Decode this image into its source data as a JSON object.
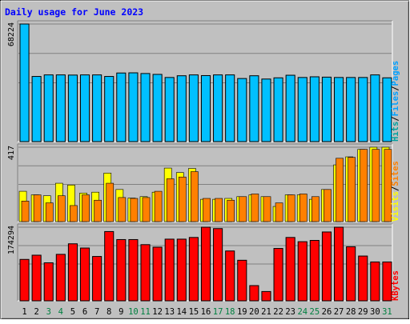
{
  "title": "Daily usage for June 2023",
  "colors": {
    "background": "#c0c0c0",
    "title_text": "#0000ff",
    "hits": "#00a0a0",
    "files": "#00a0ff",
    "hits_files_bar": "#00c0ff",
    "pages": "#00a0ff",
    "visits": "#ffff00",
    "sites": "#ff8000",
    "kbytes": "#ff0000",
    "weekday_label": "#000000",
    "weekend_label": "#008040"
  },
  "chart_data": [
    {
      "type": "bar",
      "panel": "hits-files",
      "ymax_label": "68224",
      "ylim": [
        0,
        68224
      ],
      "legend": [
        "Pages",
        "Files",
        "Hits"
      ],
      "series": [
        {
          "name": "Files",
          "values": [
            68224,
            37800,
            38700,
            38700,
            38600,
            38700,
            38700,
            37800,
            39800,
            39900,
            39500,
            39000,
            37200,
            38200,
            38700,
            38300,
            38700,
            38700,
            36600,
            38200,
            36300,
            37000,
            38500,
            37200,
            37600,
            37400,
            37200,
            37200,
            37200,
            38700,
            37000
          ]
        },
        {
          "name": "Hits",
          "values": [
            68224,
            37800,
            38700,
            38700,
            38600,
            38700,
            38700,
            37800,
            39800,
            39900,
            39500,
            39000,
            37200,
            38200,
            38700,
            38300,
            38700,
            38700,
            36600,
            38200,
            36300,
            37000,
            38500,
            37200,
            37600,
            37400,
            37200,
            37200,
            37200,
            38700,
            37000
          ]
        }
      ]
    },
    {
      "type": "bar",
      "panel": "visits-sites",
      "ymax_label": "417",
      "ylim": [
        0,
        417
      ],
      "legend": [
        "Sites",
        "Visits"
      ],
      "series": [
        {
          "name": "Visits",
          "values": [
            170,
            150,
            145,
            215,
            205,
            160,
            165,
            272,
            180,
            132,
            140,
            165,
            300,
            275,
            298,
            125,
            125,
            130,
            140,
            150,
            140,
            85,
            150,
            150,
            125,
            180,
            318,
            363,
            405,
            417,
            417
          ]
        },
        {
          "name": "Sites",
          "values": [
            115,
            150,
            105,
            145,
            90,
            150,
            120,
            215,
            135,
            130,
            135,
            170,
            240,
            250,
            280,
            130,
            130,
            120,
            140,
            155,
            140,
            105,
            150,
            155,
            140,
            180,
            355,
            360,
            405,
            405,
            405
          ]
        }
      ]
    },
    {
      "type": "bar",
      "panel": "kbytes",
      "ymax_label": "174294",
      "ylim": [
        0,
        174294
      ],
      "legend": [
        "KBytes"
      ],
      "series": [
        {
          "name": "KBytes",
          "values": [
            98000,
            108000,
            90000,
            110000,
            135000,
            125000,
            105000,
            164000,
            145000,
            145000,
            133000,
            127000,
            146000,
            146000,
            150000,
            174294,
            171000,
            118000,
            96000,
            36000,
            22000,
            124000,
            150000,
            140000,
            143000,
            163000,
            174294,
            128000,
            106000,
            92000,
            92000
          ]
        }
      ]
    }
  ],
  "x_axis": {
    "days": [
      "1",
      "2",
      "3",
      "4",
      "5",
      "6",
      "7",
      "8",
      "9",
      "10",
      "11",
      "12",
      "13",
      "14",
      "15",
      "16",
      "17",
      "18",
      "19",
      "20",
      "21",
      "22",
      "23",
      "24",
      "25",
      "26",
      "27",
      "28",
      "29",
      "30",
      "31"
    ],
    "weekend_days": [
      "3",
      "4",
      "10",
      "11",
      "17",
      "18",
      "24",
      "25",
      "31"
    ]
  }
}
